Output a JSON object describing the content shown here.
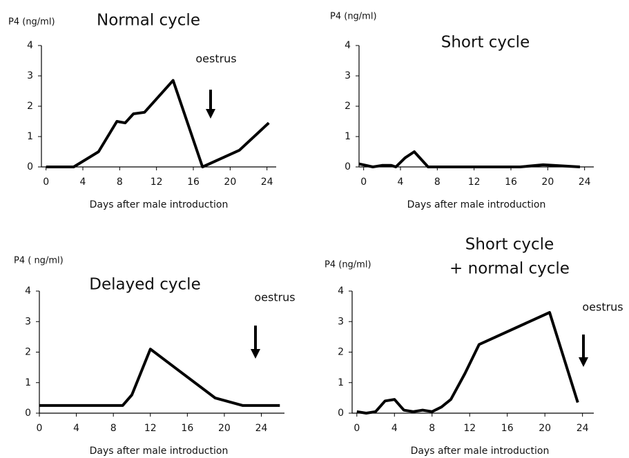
{
  "chart_data": [
    {
      "type": "line",
      "title": [
        "Normal cycle"
      ],
      "y_label": "P4 (ng/ml)",
      "x_label": "Days after male introduction",
      "annotation": "oestrus",
      "x": [
        0,
        3,
        5.7,
        7.7,
        8.6,
        9.5,
        10.7,
        13.8,
        17,
        21,
        24.2
      ],
      "series": [
        {
          "color": "#000000",
          "values": [
            0,
            0,
            0.5,
            1.5,
            1.45,
            1.75,
            1.8,
            2.85,
            0,
            0.55,
            1.45
          ]
        }
      ],
      "xlim": [
        -0.5,
        25
      ],
      "ylim": [
        0,
        4
      ],
      "xticks": [
        0,
        4,
        8,
        12,
        16,
        20,
        24
      ],
      "yticks": [
        0,
        1,
        2,
        3,
        4
      ]
    },
    {
      "type": "line",
      "title": [
        "Short cycle"
      ],
      "y_label": "P4 (ng/ml)",
      "x_label": "Days after male introduction",
      "x": [
        -0.5,
        1,
        2,
        3,
        3.5,
        4.5,
        5.5,
        7,
        17,
        19.5,
        23.5
      ],
      "series": [
        {
          "color": "#000000",
          "values": [
            0.1,
            0,
            0.05,
            0.05,
            0,
            0.3,
            0.5,
            0,
            0,
            0.07,
            0
          ]
        }
      ],
      "xlim": [
        -0.5,
        25
      ],
      "ylim": [
        0,
        4
      ],
      "xticks": [
        0,
        4,
        8,
        12,
        16,
        20,
        24
      ],
      "yticks": [
        0,
        1,
        2,
        3,
        4
      ]
    },
    {
      "type": "line",
      "title": [
        "Delayed cycle"
      ],
      "y_label": "P4 ( ng/ml)",
      "x_label": "Days after male introduction",
      "annotation": "oestrus",
      "x": [
        0,
        9,
        10,
        12,
        19,
        22,
        26
      ],
      "series": [
        {
          "color": "#000000",
          "values": [
            0.25,
            0.25,
            0.6,
            2.1,
            0.5,
            0.25,
            0.25
          ]
        }
      ],
      "xlim": [
        0,
        26.5
      ],
      "ylim": [
        0,
        4
      ],
      "xticks": [
        0,
        4,
        8,
        12,
        16,
        20,
        24
      ],
      "yticks": [
        0,
        1,
        2,
        3,
        4
      ]
    },
    {
      "type": "line",
      "title": [
        "Short cycle",
        "+ normal cycle"
      ],
      "y_label": "P4   (ng/ml)",
      "x_label": "Days after male introduction",
      "annotation": "oestrus",
      "x": [
        0,
        1,
        2,
        3,
        4,
        5,
        6,
        7,
        8,
        9,
        10,
        11.5,
        13,
        20.5,
        23.5
      ],
      "series": [
        {
          "color": "#000000",
          "values": [
            0.05,
            0,
            0.05,
            0.4,
            0.45,
            0.1,
            0.05,
            0.1,
            0.05,
            0.2,
            0.45,
            1.3,
            2.25,
            3.3,
            0.35
          ]
        }
      ],
      "xlim": [
        -0.5,
        25.2
      ],
      "ylim": [
        0,
        4
      ],
      "xticks": [
        0,
        4,
        8,
        12,
        16,
        20,
        24
      ],
      "yticks": [
        0,
        1,
        2,
        3,
        4
      ]
    }
  ]
}
